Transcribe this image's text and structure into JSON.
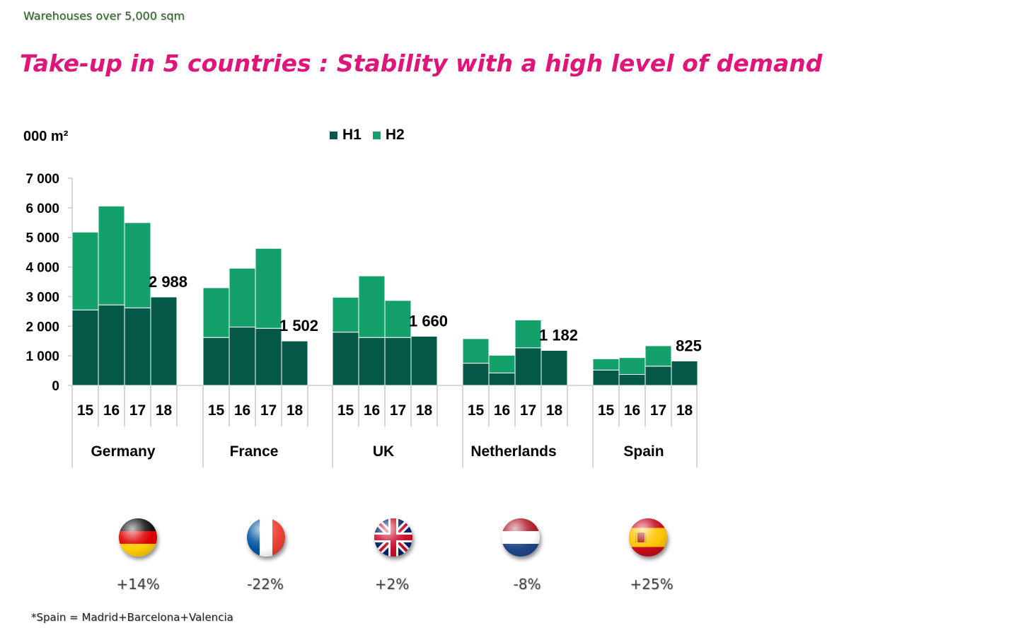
{
  "subtitle": "Warehouses over 5,000 sqm",
  "title": "Take-up in 5 countries : Stability with a high level of demand",
  "footnote": "*Spain = Madrid+Barcelona+Valencia",
  "colors": {
    "h1": "#035847",
    "h2": "#14a06a",
    "title": "#e0157a"
  },
  "legend": [
    {
      "label": "H1",
      "color": "#035847"
    },
    {
      "label": "H2",
      "color": "#14a06a"
    }
  ],
  "countries": [
    {
      "name": "Germany",
      "flag": "germany-flag-icon",
      "change": "+14%"
    },
    {
      "name": "France",
      "flag": "france-flag-icon",
      "change": "-22%"
    },
    {
      "name": "UK",
      "flag": "uk-flag-icon",
      "change": "+2%"
    },
    {
      "name": "Netherlands",
      "flag": "netherlands-flag-icon",
      "change": "-8%"
    },
    {
      "name": "Spain",
      "flag": "spain-flag-icon",
      "change": "+25%"
    }
  ],
  "chart_data": {
    "type": "bar",
    "stacked": true,
    "ylabel": "000 m²",
    "ylim": [
      0,
      7000
    ],
    "yticks": [
      0,
      1000,
      2000,
      3000,
      4000,
      5000,
      6000,
      7000
    ],
    "ytick_labels": [
      "0",
      "1 000",
      "2 000",
      "3 000",
      "4 000",
      "5 000",
      "6 000",
      "7 000"
    ],
    "groups": [
      "Germany",
      "France",
      "UK",
      "Netherlands",
      "Spain"
    ],
    "categories": [
      "15",
      "16",
      "17",
      "18"
    ],
    "series": [
      {
        "name": "H1",
        "values": [
          [
            2550,
            2720,
            2620,
            2988
          ],
          [
            1620,
            1970,
            1930,
            1502
          ],
          [
            1800,
            1620,
            1620,
            1660
          ],
          [
            750,
            420,
            1270,
            1182
          ],
          [
            520,
            370,
            650,
            825
          ]
        ]
      },
      {
        "name": "H2",
        "values": [
          [
            2630,
            3340,
            2880,
            0
          ],
          [
            1680,
            1990,
            2700,
            0
          ],
          [
            1180,
            2080,
            1250,
            0
          ],
          [
            830,
            600,
            940,
            0
          ],
          [
            380,
            570,
            690,
            0
          ]
        ]
      }
    ],
    "data_labels": [
      "2 988",
      "1 502",
      "1 660",
      "1 182",
      "825"
    ]
  }
}
